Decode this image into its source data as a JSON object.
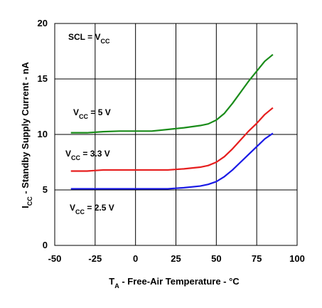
{
  "chart_data": {
    "type": "line",
    "xlabel": {
      "main": "T",
      "sub": "A",
      "rest": " - Free-Air Temperature - °C"
    },
    "ylabel": {
      "main": "I",
      "sub": "CC",
      "rest": " - Standby Supply Current - nA"
    },
    "xlim": [
      -50,
      100
    ],
    "ylim": [
      0,
      20
    ],
    "xticks": [
      -50,
      -25,
      0,
      25,
      50,
      75,
      100
    ],
    "yticks": [
      0,
      5,
      10,
      15,
      20
    ],
    "grid": true,
    "x": [
      -40,
      -30,
      -20,
      -10,
      0,
      10,
      20,
      30,
      40,
      45,
      50,
      55,
      60,
      65,
      70,
      75,
      80,
      85
    ],
    "series": [
      {
        "name": "VCC = 5 V",
        "color": "#1a8c1a",
        "values": [
          10.15,
          10.15,
          10.25,
          10.3,
          10.3,
          10.3,
          10.45,
          10.6,
          10.8,
          10.95,
          11.3,
          11.9,
          12.8,
          13.8,
          14.8,
          15.7,
          16.6,
          17.2
        ]
      },
      {
        "name": "VCC = 3.3 V",
        "color": "#e61e1e",
        "values": [
          6.7,
          6.7,
          6.8,
          6.8,
          6.8,
          6.8,
          6.8,
          6.9,
          7.05,
          7.2,
          7.5,
          8.0,
          8.7,
          9.5,
          10.3,
          11.0,
          11.8,
          12.4
        ]
      },
      {
        "name": "VCC = 2.5 V",
        "color": "#1a1ae6",
        "values": [
          5.1,
          5.1,
          5.1,
          5.1,
          5.1,
          5.1,
          5.1,
          5.2,
          5.35,
          5.5,
          5.75,
          6.2,
          6.8,
          7.5,
          8.2,
          8.9,
          9.6,
          10.1
        ]
      }
    ],
    "annotations": [
      {
        "main": "SCL = V",
        "sub": "CC",
        "rest": ""
      },
      {
        "main": "V",
        "sub": "CC",
        "rest": " = 5 V"
      },
      {
        "main": "V",
        "sub": "CC",
        "rest": " = 3.3 V"
      },
      {
        "main": "V",
        "sub": "CC",
        "rest": " = 2.5 V"
      }
    ]
  }
}
